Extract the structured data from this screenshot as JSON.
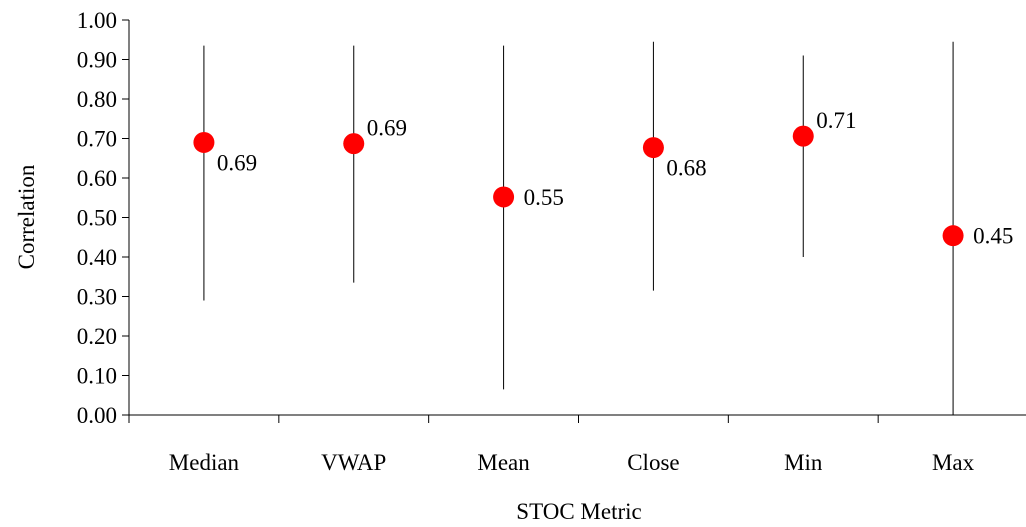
{
  "chart_data": {
    "type": "scatter",
    "xlabel": "STOC Metric",
    "ylabel": "Correlation",
    "ylim": [
      0,
      1
    ],
    "yticks": [
      "0.00",
      "0.10",
      "0.20",
      "0.30",
      "0.40",
      "0.50",
      "0.60",
      "0.70",
      "0.80",
      "0.90",
      "1.00"
    ],
    "categories": [
      "Median",
      "VWAP",
      "Mean",
      "Close",
      "Min",
      "Max"
    ],
    "values": [
      0.69,
      0.687,
      0.552,
      0.677,
      0.706,
      0.454
    ],
    "value_labels": [
      "0.69",
      "0.69",
      "0.55",
      "0.68",
      "0.71",
      "0.45"
    ],
    "range_low": [
      0.29,
      0.335,
      0.065,
      0.315,
      0.4,
      0.0
    ],
    "range_high": [
      0.935,
      0.935,
      0.935,
      0.945,
      0.91,
      0.945
    ],
    "label_side": [
      "below",
      "above",
      "right",
      "below",
      "above",
      "right"
    ],
    "marker_color": "#ff0000",
    "grid": false,
    "legend": "none"
  }
}
